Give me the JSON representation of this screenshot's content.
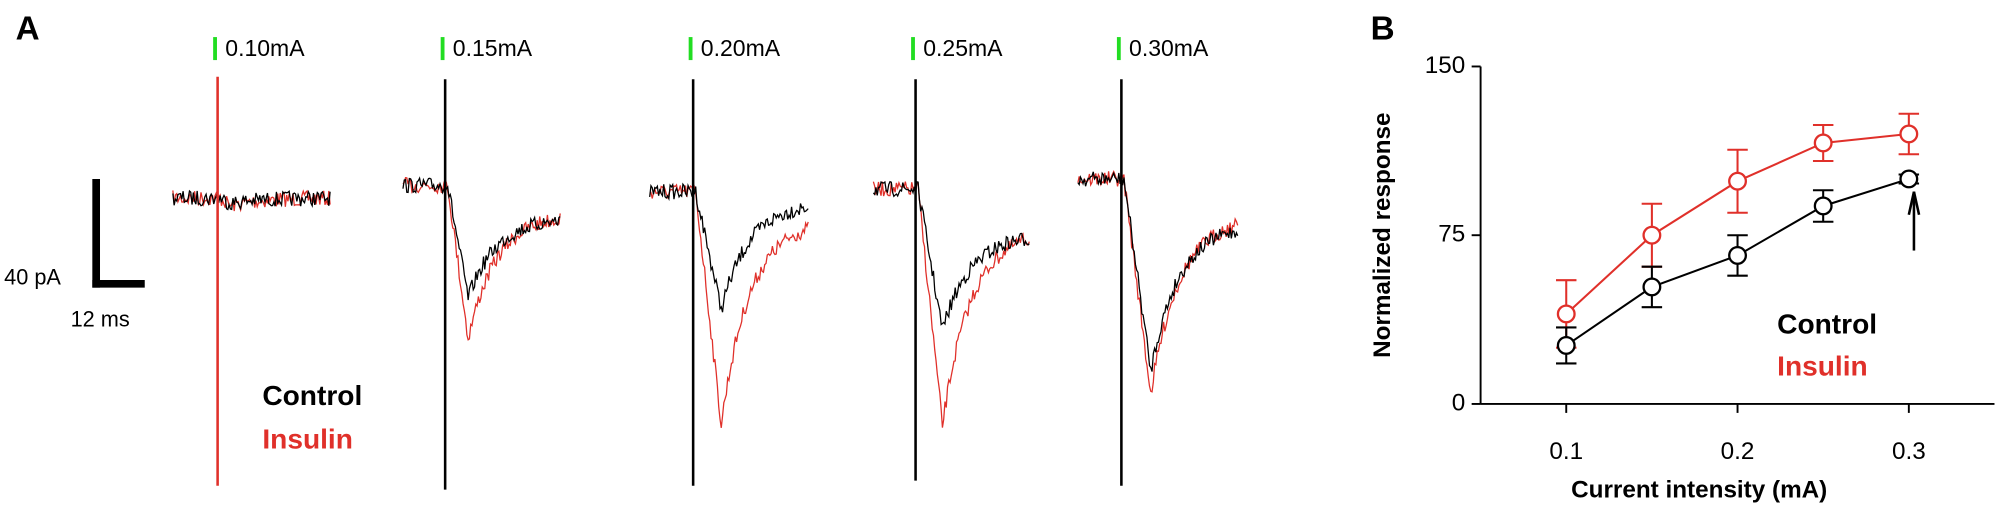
{
  "panel_a": {
    "label": "A",
    "stimuli": [
      "0.10mA",
      "0.15mA",
      "0.20mA",
      "0.25mA",
      "0.30mA"
    ],
    "scale_y": "40 pA",
    "scale_x": "12 ms",
    "legend": [
      "Control",
      "Insulin"
    ]
  },
  "chart_data": {
    "type": "line",
    "panel_label": "B",
    "x_label": "Current intensity (mA)",
    "y_label": "Normalized response",
    "x": [
      0.1,
      0.15,
      0.2,
      0.25,
      0.3
    ],
    "series": [
      {
        "name": "Control",
        "color": "#000000",
        "values": [
          26,
          52,
          66,
          88,
          100
        ],
        "errors": [
          8,
          9,
          9,
          7,
          2
        ]
      },
      {
        "name": "Insulin",
        "color": "#e0302a",
        "values": [
          40,
          75,
          99,
          116,
          120
        ],
        "errors": [
          15,
          14,
          14,
          8,
          9
        ]
      }
    ],
    "xlim": [
      0.05,
      0.35
    ],
    "xticks": [
      0.1,
      0.2,
      0.3
    ],
    "ylim": [
      0,
      150
    ],
    "yticks": [
      0,
      75,
      150
    ]
  }
}
